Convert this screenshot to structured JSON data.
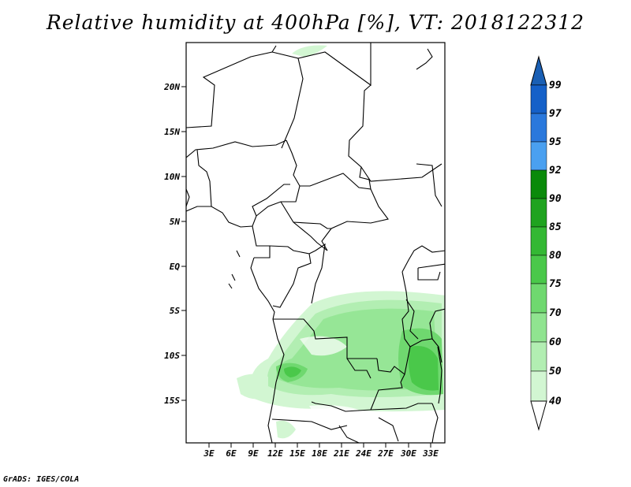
{
  "title": "Relative humidity at 400hPa [%], VT: 2018122312",
  "credit": "GrADS: IGES/COLA",
  "map": {
    "lat_labels": [
      "20N",
      "15N",
      "10N",
      "5N",
      "EQ",
      "5S",
      "10S",
      "15S"
    ],
    "lon_labels": [
      "3E",
      "6E",
      "9E",
      "12E",
      "15E",
      "18E",
      "21E",
      "24E",
      "27E",
      "30E",
      "33E"
    ]
  },
  "colorbar": {
    "labels": [
      "99",
      "97",
      "95",
      "92",
      "90",
      "85",
      "80",
      "75",
      "70",
      "60",
      "50",
      "40"
    ],
    "colors": [
      "#1560c8",
      "#2a78dc",
      "#4aa0f0",
      "#0a8a0a",
      "#1fa31f",
      "#34b834",
      "#4ac84a",
      "#6fd86f",
      "#90e490",
      "#b2eeb2",
      "#d2f6d2",
      "#eefcee"
    ],
    "top_arrow_color": "#1a5fb4",
    "bottom_arrow_color": "#ffffff"
  }
}
